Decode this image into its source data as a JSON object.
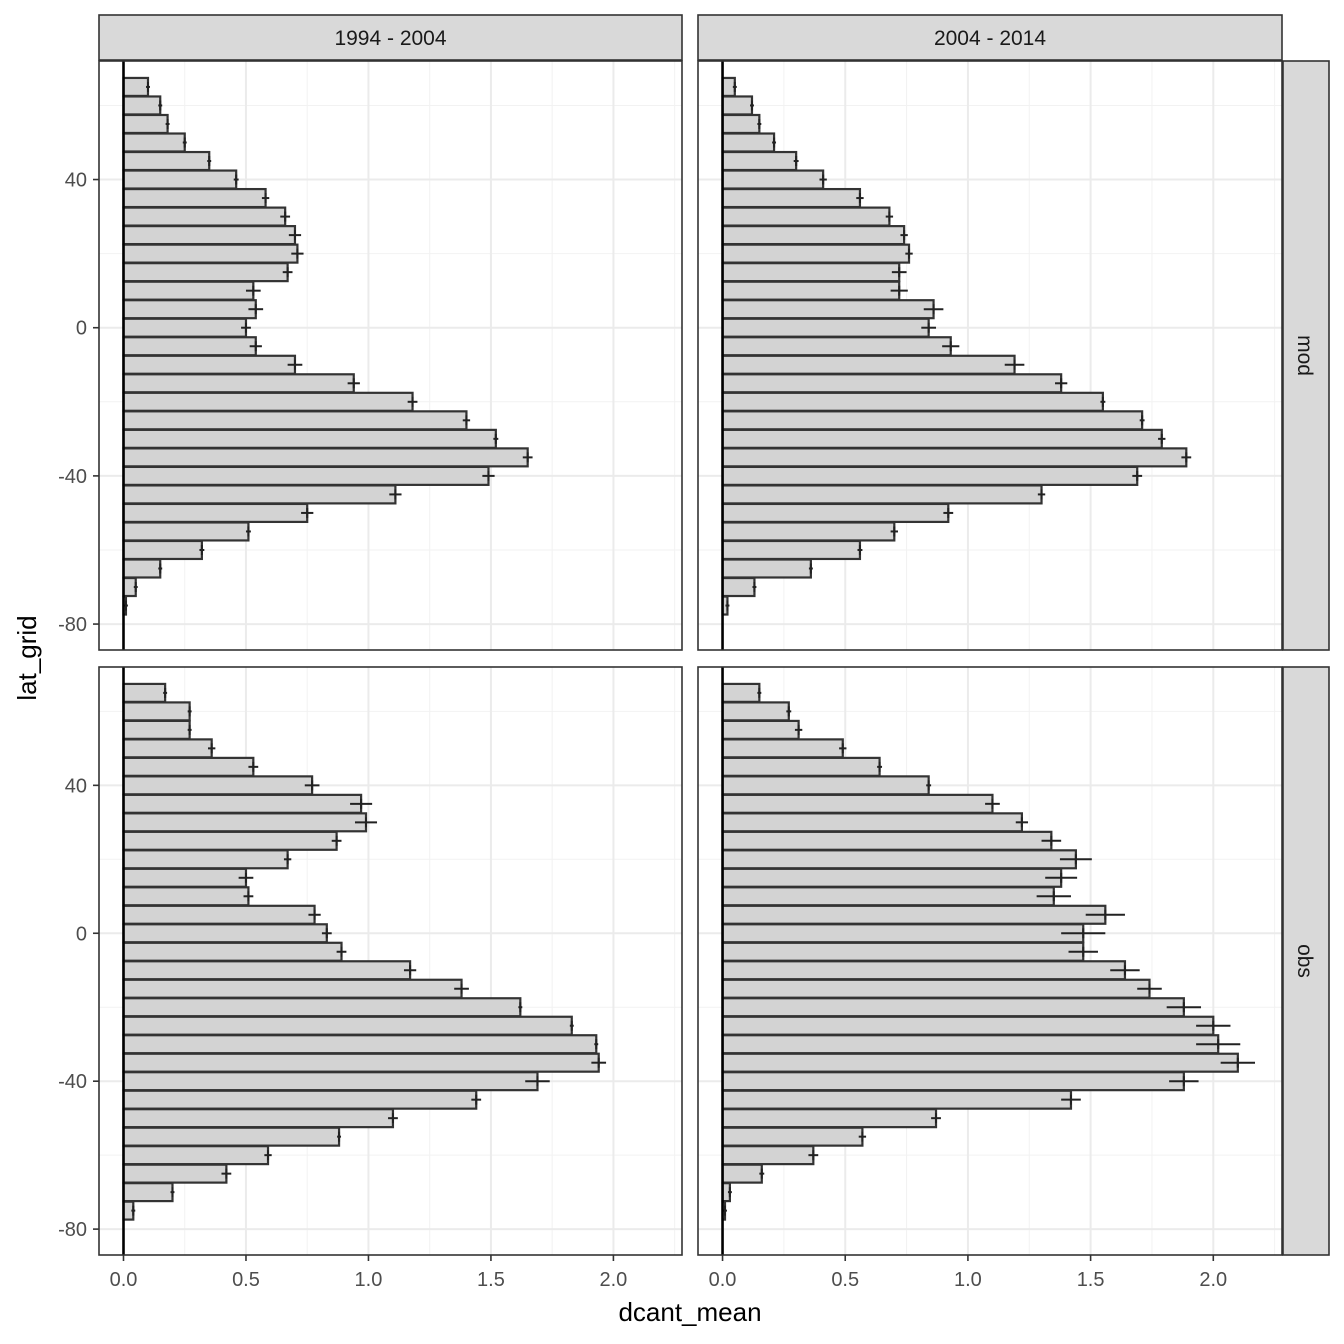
{
  "chart_data": {
    "type": "bar",
    "orientation": "horizontal",
    "xlabel": "dcant_mean",
    "ylabel": "lat_grid",
    "xlim": [
      -0.1,
      2.28
    ],
    "ylim": [
      -87,
      72
    ],
    "x_ticks": [
      0.0,
      0.5,
      1.0,
      1.5,
      2.0
    ],
    "x_tick_labels": [
      "0.0",
      "0.5",
      "1.0",
      "1.5",
      "2.0"
    ],
    "y_ticks": [
      40,
      0,
      -40,
      -80
    ],
    "y_tick_labels": [
      "40",
      "0",
      "-40",
      "-80"
    ],
    "col_facets": [
      "1994 - 2004",
      "2004 - 2014"
    ],
    "row_facets": [
      "mod",
      "obs"
    ],
    "lat_grid": [
      65,
      60,
      55,
      50,
      45,
      40,
      35,
      30,
      25,
      20,
      15,
      10,
      5,
      0,
      -5,
      -10,
      -15,
      -20,
      -25,
      -30,
      -35,
      -40,
      -45,
      -50,
      -55,
      -60,
      -65,
      -70,
      -75,
      -80
    ],
    "bar_fill": "#d3d3d3",
    "bar_outline": "#333333",
    "grid": true,
    "panels": [
      {
        "row": "mod",
        "col": "1994 - 2004",
        "values": [
          0.1,
          0.15,
          0.18,
          0.25,
          0.35,
          0.46,
          0.58,
          0.66,
          0.7,
          0.71,
          0.67,
          0.53,
          0.54,
          0.5,
          0.54,
          0.7,
          0.94,
          1.18,
          1.4,
          1.52,
          1.65,
          1.49,
          1.11,
          0.75,
          0.51,
          0.32,
          0.15,
          0.05,
          0.01,
          0
        ],
        "errors": [
          0,
          0,
          0,
          0,
          0.005,
          0.01,
          0.015,
          0.02,
          0.025,
          0.025,
          0.02,
          0.03,
          0.03,
          0.02,
          0.025,
          0.03,
          0.025,
          0.02,
          0.015,
          0.01,
          0.02,
          0.025,
          0.025,
          0.025,
          0.01,
          0.01,
          0.005,
          0,
          0,
          0
        ]
      },
      {
        "row": "mod",
        "col": "2004 - 2014",
        "values": [
          0.05,
          0.12,
          0.15,
          0.21,
          0.3,
          0.41,
          0.56,
          0.68,
          0.74,
          0.76,
          0.72,
          0.72,
          0.86,
          0.84,
          0.93,
          1.19,
          1.38,
          1.55,
          1.71,
          1.79,
          1.89,
          1.69,
          1.3,
          0.92,
          0.7,
          0.56,
          0.36,
          0.13,
          0.02,
          0
        ],
        "errors": [
          0,
          0,
          0,
          0,
          0.01,
          0.015,
          0.015,
          0.015,
          0.015,
          0.015,
          0.03,
          0.035,
          0.04,
          0.03,
          0.035,
          0.04,
          0.025,
          0.01,
          0.01,
          0.015,
          0.02,
          0.02,
          0.015,
          0.02,
          0.015,
          0.01,
          0.005,
          0,
          0,
          0
        ]
      },
      {
        "row": "obs",
        "col": "1994 - 2004",
        "values": [
          0.17,
          0.27,
          0.27,
          0.36,
          0.53,
          0.77,
          0.97,
          0.99,
          0.87,
          0.67,
          0.5,
          0.51,
          0.78,
          0.83,
          0.89,
          1.17,
          1.38,
          1.62,
          1.83,
          1.93,
          1.94,
          1.69,
          1.44,
          1.1,
          0.88,
          0.59,
          0.42,
          0.2,
          0.04,
          0
        ],
        "errors": [
          0,
          0.005,
          0.005,
          0.015,
          0.02,
          0.03,
          0.045,
          0.045,
          0.02,
          0.015,
          0.03,
          0.02,
          0.025,
          0.02,
          0.02,
          0.025,
          0.03,
          0.005,
          0.005,
          0.005,
          0.03,
          0.05,
          0.02,
          0.02,
          0.005,
          0.015,
          0.02,
          0.005,
          0,
          0
        ]
      },
      {
        "row": "obs",
        "col": "2004 - 2014",
        "values": [
          0.15,
          0.27,
          0.31,
          0.49,
          0.64,
          0.84,
          1.1,
          1.22,
          1.34,
          1.44,
          1.38,
          1.35,
          1.56,
          1.47,
          1.47,
          1.64,
          1.74,
          1.88,
          2.0,
          2.02,
          2.1,
          1.88,
          1.42,
          0.87,
          0.57,
          0.37,
          0.16,
          0.03,
          0.01,
          0
        ],
        "errors": [
          0,
          0.01,
          0.015,
          0.015,
          0.01,
          0.01,
          0.03,
          0.025,
          0.04,
          0.065,
          0.065,
          0.07,
          0.08,
          0.09,
          0.06,
          0.06,
          0.05,
          0.07,
          0.07,
          0.09,
          0.07,
          0.06,
          0.04,
          0.02,
          0.015,
          0.02,
          0.01,
          0,
          0,
          0
        ]
      }
    ]
  }
}
